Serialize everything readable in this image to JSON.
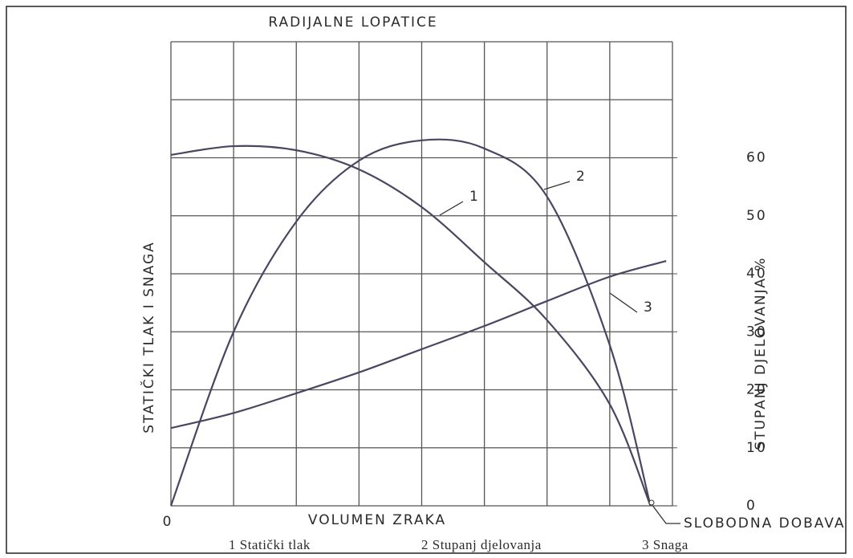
{
  "chart_data": {
    "type": "line",
    "title": "RADIJALNE LOPATICE",
    "x_label": "VOLUMEN ZRAKA",
    "y_label": "STATIČKI TLAK I SNAGA",
    "y2_label": "STUPANJ DJELOVANJA %",
    "xlim": [
      0,
      8
    ],
    "xticks": [
      0
    ],
    "ylim": [
      0,
      80
    ],
    "y2lim": [
      0,
      80
    ],
    "y2ticks": [
      0,
      10,
      20,
      30,
      40,
      50,
      60
    ],
    "grid": true,
    "annotation": "SLOBODNA DOBAVA",
    "series": [
      {
        "name": "1 Statički tlak",
        "label": "1",
        "color": "#4a4560",
        "x": [
          0,
          1,
          2,
          3,
          4,
          5,
          6,
          7,
          7.65
        ],
        "values": [
          60.5,
          62,
          61.3,
          58,
          51.5,
          42,
          32,
          17.5,
          0
        ]
      },
      {
        "name": "2 Stupanj djelovanja",
        "label": "2",
        "color": "#4a4560",
        "axis": "y2",
        "x": [
          0,
          1,
          2,
          3,
          4,
          5,
          6,
          7,
          7.65
        ],
        "values": [
          0,
          30,
          49,
          59.5,
          63,
          61.6,
          53.3,
          27.7,
          0
        ]
      },
      {
        "name": "3 Snaga",
        "label": "3",
        "color": "#4a4560",
        "x": [
          0,
          1,
          2,
          3,
          4,
          5,
          6,
          7,
          7.9
        ],
        "values": [
          13.4,
          16,
          19.4,
          23,
          27,
          31,
          35.3,
          39.5,
          42.2
        ]
      }
    ]
  }
}
